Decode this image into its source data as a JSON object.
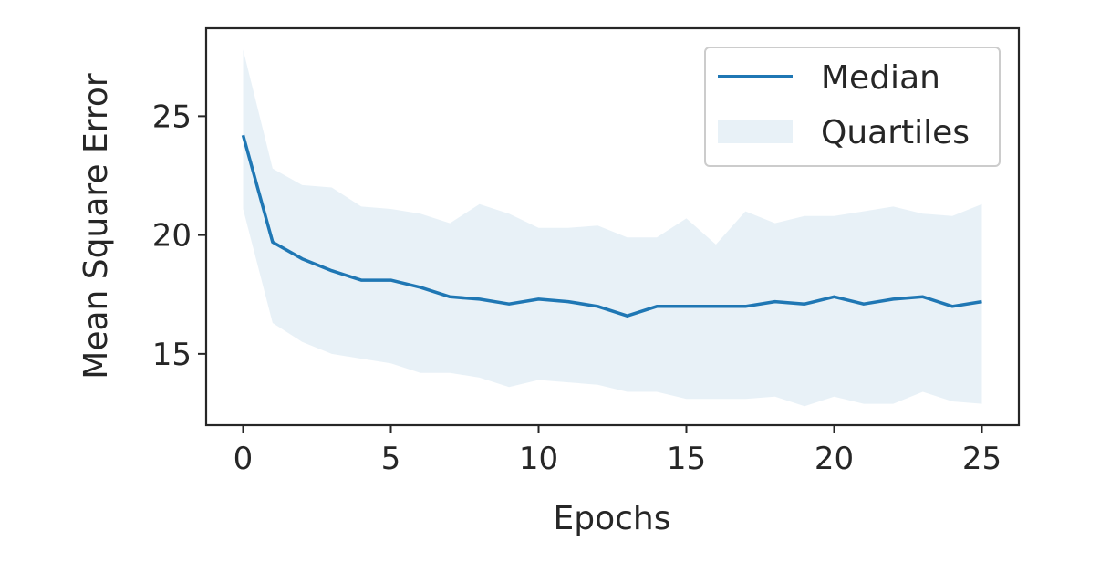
{
  "chart_data": {
    "type": "line",
    "title": "",
    "xlabel": "Epochs",
    "ylabel": "Mean Square Error",
    "xlim": [
      -1.25,
      26.25
    ],
    "ylim": [
      12.0,
      28.7
    ],
    "xticks": [
      0,
      5,
      10,
      15,
      20,
      25
    ],
    "yticks": [
      15,
      20,
      25
    ],
    "grid": false,
    "legend": "top-right",
    "x": [
      0,
      1,
      2,
      3,
      4,
      5,
      6,
      7,
      8,
      9,
      10,
      11,
      12,
      13,
      14,
      15,
      16,
      17,
      18,
      19,
      20,
      21,
      22,
      23,
      24,
      25
    ],
    "series": [
      {
        "name": "Median",
        "kind": "line",
        "color": "#1f77b4",
        "values": [
          24.2,
          19.7,
          19.0,
          18.5,
          18.1,
          18.1,
          17.8,
          17.4,
          17.3,
          17.1,
          17.3,
          17.2,
          17.0,
          16.6,
          17.0,
          17.0,
          17.0,
          17.0,
          17.2,
          17.1,
          17.4,
          17.1,
          17.3,
          17.4,
          17.0,
          17.2
        ]
      },
      {
        "name": "Quartiles",
        "kind": "band",
        "color": "#1f77b4",
        "opacity": 0.1,
        "upper": [
          27.8,
          22.8,
          22.1,
          22.0,
          21.2,
          21.1,
          20.9,
          20.5,
          21.3,
          20.9,
          20.3,
          20.3,
          20.4,
          19.9,
          19.9,
          20.7,
          19.6,
          21.0,
          20.5,
          20.8,
          20.8,
          21.0,
          21.2,
          20.9,
          20.8,
          21.3
        ],
        "lower": [
          21.1,
          16.3,
          15.5,
          15.0,
          14.8,
          14.6,
          14.2,
          14.2,
          14.0,
          13.6,
          13.9,
          13.8,
          13.7,
          13.4,
          13.4,
          13.1,
          13.1,
          13.1,
          13.2,
          12.8,
          13.2,
          12.9,
          12.9,
          13.4,
          13.0,
          12.9
        ]
      }
    ]
  }
}
